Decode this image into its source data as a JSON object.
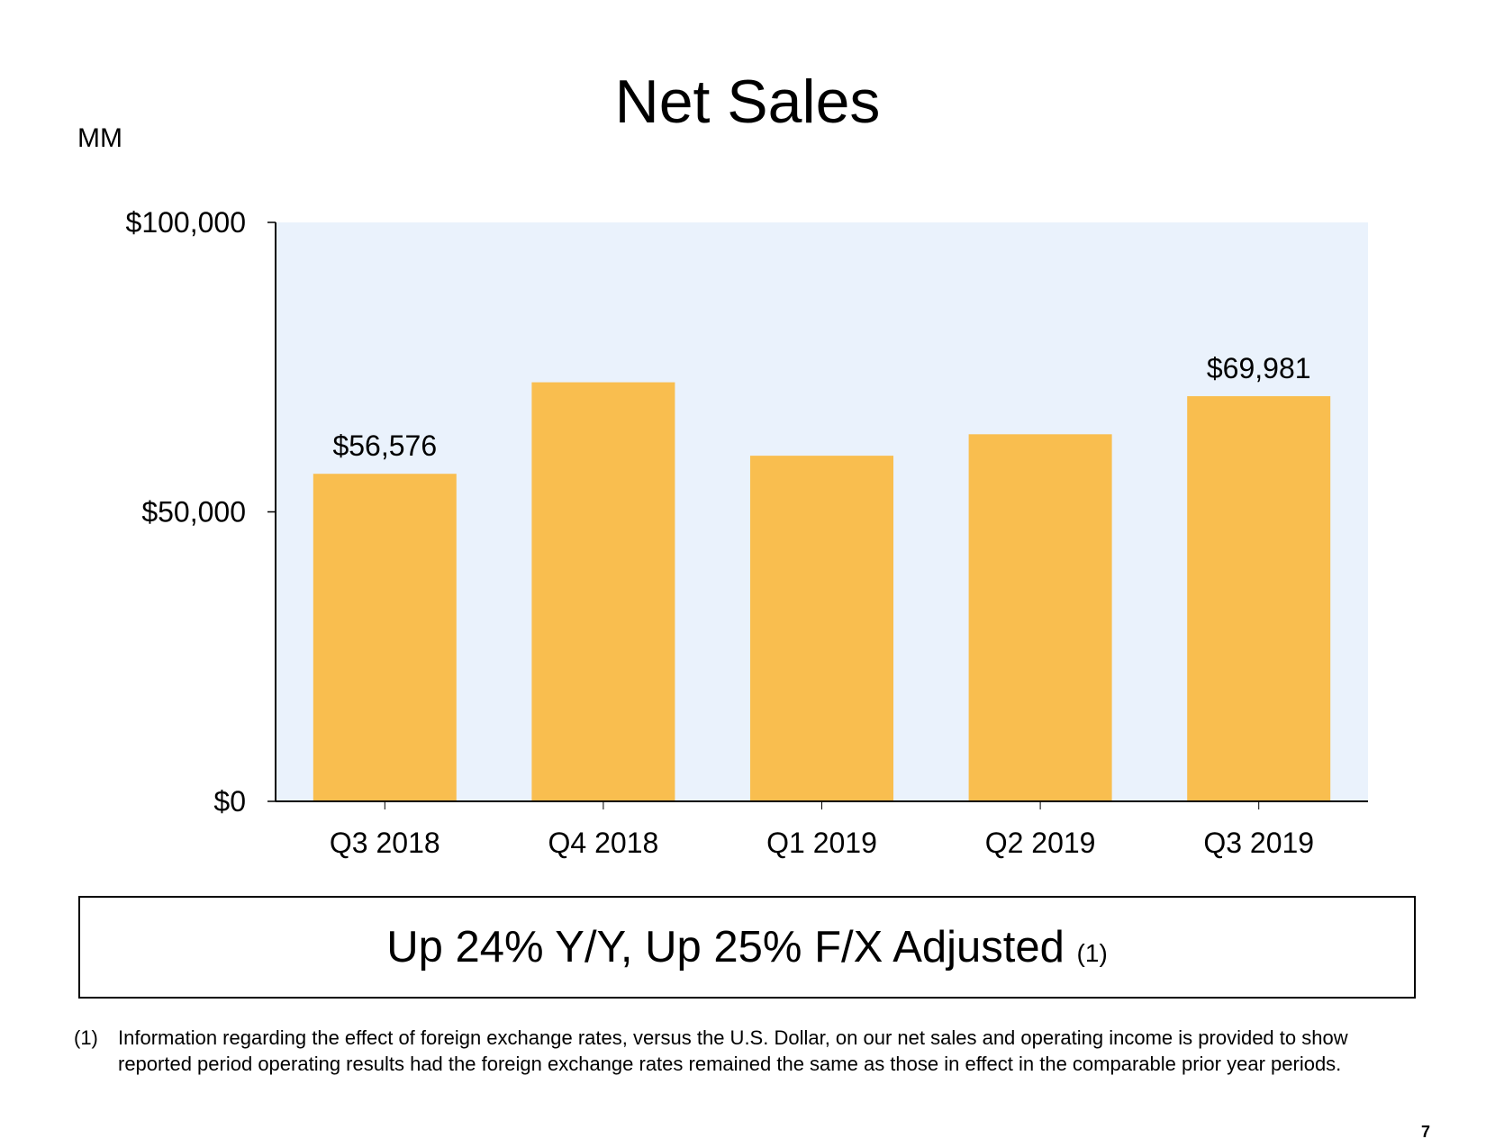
{
  "title": "Net Sales",
  "unit_label": "MM",
  "chart_data": {
    "type": "bar",
    "title": "Net Sales",
    "ylabel": "MM",
    "xlabel": "",
    "categories": [
      "Q3 2018",
      "Q4 2018",
      "Q1 2019",
      "Q2 2019",
      "Q3 2019"
    ],
    "values": [
      56576,
      72383,
      59700,
      63404,
      69981
    ],
    "data_labels": [
      "$56,576",
      null,
      null,
      null,
      "$69,981"
    ],
    "ylim": [
      0,
      100000
    ],
    "yticks": [
      0,
      50000,
      100000
    ],
    "ytick_labels": [
      "$0",
      "$50,000",
      "$100,000"
    ],
    "grid": false,
    "bar_color": "#F9BE4F",
    "plot_background": "#EAF2FC"
  },
  "callout": {
    "text": "Up 24% Y/Y, Up 25% F/X Adjusted",
    "note_ref": "(1)"
  },
  "footnote": {
    "marker": "(1)",
    "line1": "Information regarding the effect of foreign exchange rates, versus the U.S. Dollar, on our net sales and operating income is provided to show",
    "line2": "reported period operating results had the foreign exchange rates remained the same as those in effect in the comparable prior year periods."
  },
  "page_number": "7"
}
